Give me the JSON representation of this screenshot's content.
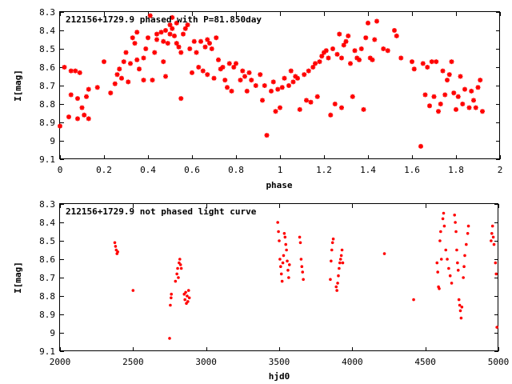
{
  "chart_data": [
    {
      "type": "scatter",
      "title": "212156+1729.9 phased with P=81.850day",
      "xlabel": "phase",
      "ylabel": "I[mag]",
      "xlim": [
        0,
        2
      ],
      "ylim": [
        9.1,
        8.3
      ],
      "y_inverted": true,
      "xticks": [
        "0",
        "0.2",
        "0.4",
        "0.6",
        "0.8",
        "1",
        "1.2",
        "1.4",
        "1.6",
        "1.8",
        "2"
      ],
      "yticks": [
        "8.3",
        "8.4",
        "8.5",
        "8.6",
        "8.7",
        "8.8",
        "8.9",
        "9",
        "9.1"
      ],
      "marker_color": "#ff0000",
      "marker": "star",
      "points": [
        [
          0.0,
          8.92
        ],
        [
          0.02,
          8.6
        ],
        [
          0.04,
          8.87
        ],
        [
          0.05,
          8.75
        ],
        [
          0.05,
          8.62
        ],
        [
          0.07,
          8.62
        ],
        [
          0.08,
          8.88
        ],
        [
          0.08,
          8.77
        ],
        [
          0.09,
          8.63
        ],
        [
          0.1,
          8.82
        ],
        [
          0.11,
          8.86
        ],
        [
          0.12,
          8.76
        ],
        [
          0.13,
          8.88
        ],
        [
          0.13,
          8.72
        ],
        [
          0.17,
          8.71
        ],
        [
          0.2,
          8.57
        ],
        [
          0.23,
          8.74
        ],
        [
          0.25,
          8.69
        ],
        [
          0.26,
          8.64
        ],
        [
          0.27,
          8.61
        ],
        [
          0.28,
          8.66
        ],
        [
          0.29,
          8.57
        ],
        [
          0.3,
          8.52
        ],
        [
          0.31,
          8.68
        ],
        [
          0.32,
          8.58
        ],
        [
          0.33,
          8.44
        ],
        [
          0.34,
          8.47
        ],
        [
          0.35,
          8.41
        ],
        [
          0.35,
          8.56
        ],
        [
          0.36,
          8.61
        ],
        [
          0.38,
          8.55
        ],
        [
          0.38,
          8.67
        ],
        [
          0.39,
          8.5
        ],
        [
          0.4,
          8.44
        ],
        [
          0.41,
          8.32
        ],
        [
          0.42,
          8.67
        ],
        [
          0.43,
          8.52
        ],
        [
          0.44,
          8.45
        ],
        [
          0.44,
          8.42
        ],
        [
          0.46,
          8.41
        ],
        [
          0.47,
          8.46
        ],
        [
          0.47,
          8.57
        ],
        [
          0.48,
          8.4
        ],
        [
          0.48,
          8.65
        ],
        [
          0.49,
          8.47
        ],
        [
          0.5,
          8.42
        ],
        [
          0.5,
          8.37
        ],
        [
          0.51,
          8.39
        ],
        [
          0.51,
          8.33
        ],
        [
          0.52,
          8.43
        ],
        [
          0.53,
          8.47
        ],
        [
          0.53,
          8.36
        ],
        [
          0.54,
          8.49
        ],
        [
          0.55,
          8.52
        ],
        [
          0.55,
          8.77
        ],
        [
          0.56,
          8.42
        ],
        [
          0.57,
          8.39
        ],
        [
          0.58,
          8.37
        ],
        [
          0.59,
          8.5
        ],
        [
          0.6,
          8.63
        ],
        [
          0.61,
          8.46
        ],
        [
          0.62,
          8.52
        ],
        [
          0.63,
          8.6
        ],
        [
          0.64,
          8.46
        ],
        [
          0.65,
          8.62
        ],
        [
          0.66,
          8.49
        ],
        [
          0.67,
          8.45
        ],
        [
          0.67,
          8.64
        ],
        [
          0.68,
          8.47
        ],
        [
          0.69,
          8.5
        ],
        [
          0.7,
          8.66
        ],
        [
          0.71,
          8.44
        ],
        [
          0.72,
          8.56
        ],
        [
          0.73,
          8.61
        ],
        [
          0.74,
          8.6
        ],
        [
          0.75,
          8.67
        ],
        [
          0.76,
          8.71
        ],
        [
          0.77,
          8.58
        ],
        [
          0.78,
          8.73
        ],
        [
          0.79,
          8.6
        ],
        [
          0.8,
          8.58
        ],
        [
          0.82,
          8.67
        ],
        [
          0.83,
          8.62
        ],
        [
          0.84,
          8.65
        ],
        [
          0.85,
          8.73
        ],
        [
          0.86,
          8.63
        ],
        [
          0.87,
          8.67
        ],
        [
          0.89,
          8.7
        ],
        [
          0.91,
          8.64
        ],
        [
          0.92,
          8.78
        ],
        [
          0.93,
          8.7
        ],
        [
          0.94,
          8.97
        ],
        [
          0.96,
          8.73
        ],
        [
          0.97,
          8.68
        ],
        [
          0.98,
          8.84
        ],
        [
          0.99,
          8.72
        ],
        [
          1.0,
          8.82
        ],
        [
          1.01,
          8.71
        ],
        [
          1.02,
          8.66
        ],
        [
          1.04,
          8.7
        ],
        [
          1.05,
          8.62
        ],
        [
          1.06,
          8.68
        ],
        [
          1.07,
          8.65
        ],
        [
          1.08,
          8.66
        ],
        [
          1.09,
          8.83
        ],
        [
          1.11,
          8.64
        ],
        [
          1.12,
          8.78
        ],
        [
          1.13,
          8.62
        ],
        [
          1.14,
          8.79
        ],
        [
          1.15,
          8.6
        ],
        [
          1.16,
          8.58
        ],
        [
          1.17,
          8.76
        ],
        [
          1.18,
          8.57
        ],
        [
          1.19,
          8.54
        ],
        [
          1.2,
          8.52
        ],
        [
          1.21,
          8.51
        ],
        [
          1.22,
          8.55
        ],
        [
          1.23,
          8.86
        ],
        [
          1.24,
          8.5
        ],
        [
          1.25,
          8.8
        ],
        [
          1.26,
          8.53
        ],
        [
          1.27,
          8.42
        ],
        [
          1.28,
          8.55
        ],
        [
          1.28,
          8.82
        ],
        [
          1.29,
          8.48
        ],
        [
          1.3,
          8.46
        ],
        [
          1.31,
          8.43
        ],
        [
          1.32,
          8.58
        ],
        [
          1.33,
          8.76
        ],
        [
          1.34,
          8.51
        ],
        [
          1.35,
          8.55
        ],
        [
          1.36,
          8.56
        ],
        [
          1.37,
          8.5
        ],
        [
          1.38,
          8.83
        ],
        [
          1.39,
          8.44
        ],
        [
          1.4,
          8.36
        ],
        [
          1.41,
          8.55
        ],
        [
          1.42,
          8.56
        ],
        [
          1.43,
          8.45
        ],
        [
          1.44,
          8.35
        ],
        [
          1.47,
          8.5
        ],
        [
          1.49,
          8.51
        ],
        [
          1.52,
          8.4
        ],
        [
          1.53,
          8.43
        ],
        [
          1.55,
          8.55
        ],
        [
          1.6,
          8.57
        ],
        [
          1.61,
          8.61
        ],
        [
          1.64,
          9.03
        ],
        [
          1.65,
          8.58
        ],
        [
          1.66,
          8.75
        ],
        [
          1.67,
          8.6
        ],
        [
          1.68,
          8.81
        ],
        [
          1.69,
          8.57
        ],
        [
          1.7,
          8.76
        ],
        [
          1.71,
          8.57
        ],
        [
          1.72,
          8.84
        ],
        [
          1.73,
          8.8
        ],
        [
          1.74,
          8.62
        ],
        [
          1.75,
          8.75
        ],
        [
          1.76,
          8.67
        ],
        [
          1.77,
          8.64
        ],
        [
          1.78,
          8.57
        ],
        [
          1.79,
          8.74
        ],
        [
          1.8,
          8.83
        ],
        [
          1.81,
          8.76
        ],
        [
          1.82,
          8.65
        ],
        [
          1.83,
          8.8
        ],
        [
          1.84,
          8.72
        ],
        [
          1.86,
          8.82
        ],
        [
          1.87,
          8.73
        ],
        [
          1.88,
          8.78
        ],
        [
          1.89,
          8.82
        ],
        [
          1.9,
          8.71
        ],
        [
          1.91,
          8.67
        ],
        [
          1.92,
          8.84
        ]
      ]
    },
    {
      "type": "scatter",
      "title": "212156+1729.9 not phased light curve",
      "xlabel": "hjd0",
      "ylabel": "I[mag]",
      "xlim": [
        2000,
        5000
      ],
      "ylim": [
        9.1,
        8.3
      ],
      "y_inverted": true,
      "xticks": [
        "2000",
        "2500",
        "3000",
        "3500",
        "4000",
        "4500",
        "5000"
      ],
      "yticks": [
        "8.3",
        "8.4",
        "8.5",
        "8.6",
        "8.7",
        "8.8",
        "8.9",
        "9",
        "9.1"
      ],
      "marker_color": "#ff0000",
      "marker": "dot",
      "points": [
        [
          2375,
          8.51
        ],
        [
          2380,
          8.53
        ],
        [
          2385,
          8.55
        ],
        [
          2390,
          8.57
        ],
        [
          2395,
          8.56
        ],
        [
          2500,
          8.77
        ],
        [
          2750,
          9.03
        ],
        [
          2755,
          8.85
        ],
        [
          2760,
          8.81
        ],
        [
          2762,
          8.79
        ],
        [
          2790,
          8.72
        ],
        [
          2800,
          8.68
        ],
        [
          2805,
          8.65
        ],
        [
          2810,
          8.7
        ],
        [
          2815,
          8.62
        ],
        [
          2820,
          8.6
        ],
        [
          2825,
          8.63
        ],
        [
          2830,
          8.65
        ],
        [
          2850,
          8.79
        ],
        [
          2855,
          8.82
        ],
        [
          2860,
          8.78
        ],
        [
          2865,
          8.84
        ],
        [
          2870,
          8.8
        ],
        [
          2875,
          8.83
        ],
        [
          2880,
          8.77
        ],
        [
          2885,
          8.81
        ],
        [
          3490,
          8.4
        ],
        [
          3495,
          8.45
        ],
        [
          3500,
          8.5
        ],
        [
          3505,
          8.6
        ],
        [
          3510,
          8.64
        ],
        [
          3515,
          8.68
        ],
        [
          3520,
          8.72
        ],
        [
          3525,
          8.62
        ],
        [
          3530,
          8.58
        ],
        [
          3535,
          8.46
        ],
        [
          3540,
          8.48
        ],
        [
          3545,
          8.52
        ],
        [
          3550,
          8.55
        ],
        [
          3555,
          8.61
        ],
        [
          3560,
          8.66
        ],
        [
          3565,
          8.7
        ],
        [
          3570,
          8.63
        ],
        [
          3640,
          8.48
        ],
        [
          3645,
          8.51
        ],
        [
          3650,
          8.6
        ],
        [
          3655,
          8.64
        ],
        [
          3660,
          8.67
        ],
        [
          3665,
          8.71
        ],
        [
          3850,
          8.71
        ],
        [
          3855,
          8.61
        ],
        [
          3860,
          8.55
        ],
        [
          3865,
          8.51
        ],
        [
          3870,
          8.49
        ],
        [
          3890,
          8.75
        ],
        [
          3895,
          8.77
        ],
        [
          3900,
          8.73
        ],
        [
          3905,
          8.69
        ],
        [
          3910,
          8.65
        ],
        [
          3915,
          8.62
        ],
        [
          3920,
          8.6
        ],
        [
          3925,
          8.58
        ],
        [
          3930,
          8.55
        ],
        [
          3935,
          8.62
        ],
        [
          4220,
          8.57
        ],
        [
          4420,
          8.82
        ],
        [
          4580,
          8.62
        ],
        [
          4585,
          8.67
        ],
        [
          4590,
          8.75
        ],
        [
          4595,
          8.76
        ],
        [
          4600,
          8.5
        ],
        [
          4605,
          8.45
        ],
        [
          4610,
          8.6
        ],
        [
          4620,
          8.38
        ],
        [
          4625,
          8.35
        ],
        [
          4630,
          8.42
        ],
        [
          4640,
          8.55
        ],
        [
          4650,
          8.6
        ],
        [
          4660,
          8.65
        ],
        [
          4670,
          8.69
        ],
        [
          4680,
          8.73
        ],
        [
          4700,
          8.36
        ],
        [
          4705,
          8.4
        ],
        [
          4710,
          8.45
        ],
        [
          4715,
          8.55
        ],
        [
          4720,
          8.62
        ],
        [
          4725,
          8.66
        ],
        [
          4730,
          8.82
        ],
        [
          4735,
          8.85
        ],
        [
          4740,
          8.88
        ],
        [
          4745,
          8.92
        ],
        [
          4750,
          8.86
        ],
        [
          4760,
          8.7
        ],
        [
          4765,
          8.64
        ],
        [
          4770,
          8.58
        ],
        [
          4780,
          8.52
        ],
        [
          4790,
          8.46
        ],
        [
          4795,
          8.42
        ],
        [
          4950,
          8.5
        ],
        [
          4955,
          8.46
        ],
        [
          4960,
          8.42
        ],
        [
          4965,
          8.48
        ],
        [
          4970,
          8.52
        ],
        [
          4980,
          8.62
        ],
        [
          4985,
          8.68
        ],
        [
          4990,
          8.97
        ]
      ]
    }
  ]
}
